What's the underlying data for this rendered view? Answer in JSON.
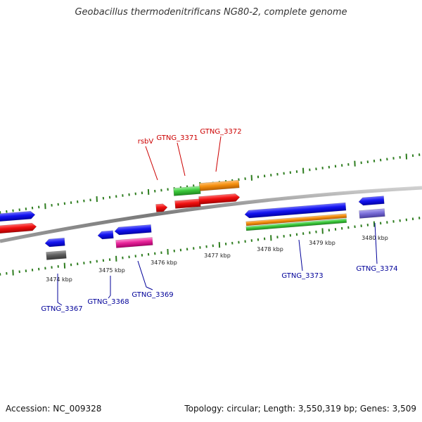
{
  "title": "Geobacillus thermodenitrificans NG80-2, complete genome",
  "footer": {
    "accession": "Accession: NC_009328",
    "summary": "Topology: circular; Length: 3,550,319 bp; Genes: 3,509"
  },
  "colors": {
    "forward_label": "#cc0000",
    "reverse_label": "#000099",
    "tick": "#2e7d1f",
    "backbone": "#8a8a8a"
  },
  "scale_labels": [
    "3474 kbp",
    "3475 kbp",
    "3476 kbp",
    "3477 kbp",
    "3478 kbp",
    "3479 kbp",
    "3480 kbp"
  ],
  "forward_gene_labels": [
    "rsbV",
    "GTNG_3371",
    "GTNG_3372"
  ],
  "reverse_gene_labels": [
    "GTNG_3367",
    "GTNG_3368",
    "GTNG_3369",
    "GTNG_3373",
    "GTNG_3374"
  ]
}
